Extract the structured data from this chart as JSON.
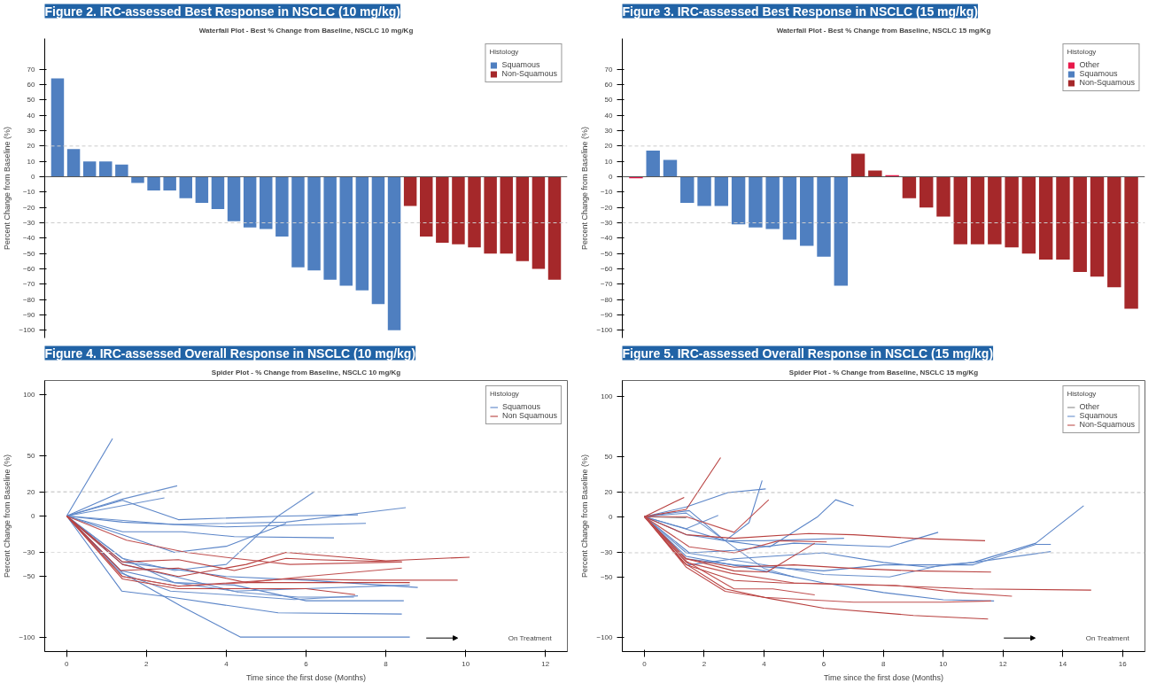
{
  "chart_data": [
    {
      "type": "bar",
      "title": "Figure 2. IRC-assessed Best Response in NSCLC (10 mg/kg)",
      "subtitle": "Waterfall Plot - Best % Change from Baseline, NSCLC 10 mg/Kg",
      "ylabel": "Percent Change from Baseline (%)",
      "legend_title": "Histology",
      "legend": "top right",
      "grid": false,
      "tick_labels": "y",
      "categories": [
        null,
        null,
        null,
        null,
        null,
        null,
        null,
        null,
        null,
        null,
        null,
        null,
        null,
        null,
        null,
        null,
        null,
        null,
        null,
        null,
        null,
        null,
        null,
        null,
        null,
        null,
        null,
        null,
        null,
        null,
        null,
        null
      ],
      "series": [
        {
          "name": "Squamous",
          "color": "#4f7fc0",
          "values": [
            64,
            18,
            10,
            10,
            8,
            -4,
            -9,
            -9,
            -14,
            -17,
            -21,
            -29,
            -33,
            -34,
            -39,
            -59,
            -61,
            -67,
            -71,
            -74,
            -83,
            -100,
            null,
            null,
            null,
            null,
            null,
            null,
            null,
            null,
            null,
            null
          ]
        },
        {
          "name": "Non-Squamous",
          "color": "#a5282a",
          "values": [
            null,
            null,
            null,
            null,
            null,
            null,
            null,
            null,
            null,
            null,
            null,
            null,
            null,
            null,
            null,
            null,
            null,
            null,
            null,
            null,
            null,
            null,
            -19,
            -39,
            -43,
            -44,
            -46,
            -50,
            -50,
            -55,
            -60,
            -67
          ]
        }
      ],
      "ylim": [
        -105,
        90
      ],
      "yticks": [
        -100,
        -90,
        -80,
        -70,
        -60,
        -50,
        -40,
        -30,
        -20,
        -10,
        0,
        10,
        20,
        30,
        40,
        50,
        60,
        70
      ],
      "ref_lines": [
        {
          "axis": "y",
          "value": 20,
          "color": "#cccccc",
          "line_style": "dashed"
        },
        {
          "axis": "y",
          "value": -30,
          "color": "#cccccc",
          "line_style": "dashed"
        }
      ]
    },
    {
      "type": "bar",
      "title": "Figure 3. IRC-assessed Best Response in NSCLC (15 mg/kg)",
      "subtitle": "Waterfall Plot - Best % Change from Baseline, NSCLC 15 mg/Kg",
      "ylabel": "Percent Change from Baseline (%)",
      "legend_title": "Histology",
      "legend": "top right",
      "grid": false,
      "tick_labels": "y",
      "categories": [
        null,
        null,
        null,
        null,
        null,
        null,
        null,
        null,
        null,
        null,
        null,
        null,
        null,
        null,
        null,
        null,
        null,
        null,
        null,
        null,
        null,
        null,
        null,
        null,
        null,
        null,
        null,
        null,
        null,
        null
      ],
      "series": [
        {
          "name": "Other",
          "color": "#e8194a",
          "values": [
            -1,
            null,
            null,
            null,
            null,
            null,
            null,
            null,
            null,
            null,
            null,
            null,
            null,
            null,
            null,
            1,
            null,
            null,
            null,
            null,
            null,
            null,
            null,
            null,
            null,
            null,
            null,
            null,
            null,
            null
          ]
        },
        {
          "name": "Squamous",
          "color": "#4f7fc0",
          "values": [
            null,
            17,
            11,
            -17,
            -19,
            -19,
            -31,
            -33,
            -34,
            -41,
            -45,
            -52,
            -71,
            null,
            null,
            null,
            null,
            null,
            null,
            null,
            null,
            null,
            null,
            null,
            null,
            null,
            null,
            null,
            null,
            null
          ]
        },
        {
          "name": "Non-Squamous",
          "color": "#a5282a",
          "values": [
            null,
            null,
            null,
            null,
            null,
            null,
            null,
            null,
            null,
            null,
            null,
            null,
            null,
            15,
            4,
            null,
            -14,
            -20,
            -26,
            -44,
            -44,
            -44,
            -46,
            -50,
            -54,
            -54,
            -62,
            -65,
            -72,
            -86
          ]
        }
      ],
      "ylim": [
        -105,
        90
      ],
      "yticks": [
        -100,
        -90,
        -80,
        -70,
        -60,
        -50,
        -40,
        -30,
        -20,
        -10,
        0,
        10,
        20,
        30,
        40,
        50,
        60,
        70
      ],
      "ref_lines": [
        {
          "axis": "y",
          "value": 20,
          "color": "#cccccc",
          "line_style": "dashed"
        },
        {
          "axis": "y",
          "value": -30,
          "color": "#cccccc",
          "line_style": "dashed"
        }
      ]
    },
    {
      "type": "line",
      "title": "Figure 4. IRC-assessed Overall Response in NSCLC (10 mg/kg)",
      "subtitle": "Spider Plot - % Change from Baseline, NSCLC 10 mg/Kg",
      "xlabel": "Time since the first dose (Months)",
      "ylabel": "Percent Change from Baseline (%)",
      "legend_title": "Histology",
      "legend": "top right",
      "grid": false,
      "xlim": [
        -0.55,
        12.55
      ],
      "xticks": [
        0,
        2,
        4,
        6,
        8,
        10,
        12
      ],
      "ylim": [
        -112,
        112
      ],
      "yticks": [
        -100,
        -50,
        -30,
        0,
        20,
        50,
        100
      ],
      "annotations": [
        "On Treatment"
      ],
      "ref_lines": [
        {
          "axis": "y",
          "value": 20,
          "color": "#bbbbbb",
          "line_style": "dashed"
        },
        {
          "axis": "y",
          "value": -30,
          "color": "#dddddd",
          "line_style": "dashed"
        }
      ],
      "series": [
        {
          "name": "Squamous",
          "color": "#5b85c8",
          "x": [
            0,
            1.15
          ],
          "values": [
            0,
            64
          ]
        },
        {
          "color": "#5b85c8",
          "x": [
            0,
            1.38
          ],
          "values": [
            0,
            20
          ]
        },
        {
          "color": "#6a90cc",
          "x": [
            0,
            1.4,
            2.77
          ],
          "values": [
            0,
            14,
            25
          ]
        },
        {
          "color": "#6a90cc",
          "x": [
            0,
            2.45
          ],
          "values": [
            0,
            15
          ]
        },
        {
          "color": "#5b85c8",
          "x": [
            0,
            1.4,
            2.8,
            5.5,
            7.3
          ],
          "values": [
            0,
            13,
            -3,
            0,
            1
          ]
        },
        {
          "color": "#6a90cc",
          "x": [
            0,
            2.7,
            5.5,
            8.5
          ],
          "values": [
            0,
            -7,
            -5,
            7
          ]
        },
        {
          "color": "#5b85c8",
          "x": [
            0,
            1.4,
            4,
            7.5
          ],
          "values": [
            0,
            -5,
            -9,
            -6
          ]
        },
        {
          "color": "#5b85c8",
          "x": [
            0,
            1.4,
            2.9,
            4.2,
            6.7
          ],
          "values": [
            0,
            -13,
            -13,
            -17,
            -18
          ]
        },
        {
          "color": "#6a90cc",
          "x": [
            0,
            1.4,
            2.7,
            4,
            5.3,
            6.2
          ],
          "values": [
            0,
            -35,
            -45,
            -40,
            0,
            20
          ]
        },
        {
          "color": "#5b85c8",
          "x": [
            0,
            2.7,
            4,
            5.5
          ],
          "values": [
            0,
            -30,
            -25,
            -6
          ]
        },
        {
          "color": "#6a90cc",
          "x": [
            0,
            1.4,
            2.7,
            4.3,
            5.8,
            7.2
          ],
          "values": [
            0,
            -40,
            -50,
            -63,
            -67,
            -67
          ]
        },
        {
          "color": "#5b85c8",
          "x": [
            0,
            1.35,
            2.7,
            4.2,
            6,
            8.45
          ],
          "values": [
            0,
            -45,
            -55,
            -57,
            -70,
            -70
          ]
        },
        {
          "color": "#5b85c8",
          "x": [
            0,
            1.38,
            2.6,
            5.3,
            8.4
          ],
          "values": [
            0,
            -62,
            -67,
            -80,
            -81
          ]
        },
        {
          "color": "#6a90cc",
          "x": [
            0,
            1.35,
            2.6,
            4,
            5.7,
            7.3
          ],
          "values": [
            0,
            -47,
            -62,
            -65,
            -69,
            -66
          ]
        },
        {
          "color": "#5b85c8",
          "x": [
            0,
            1.4,
            2.9,
            4.35,
            8.6
          ],
          "values": [
            0,
            -47,
            -75,
            -100,
            -100
          ]
        },
        {
          "color": "#6a90cc",
          "x": [
            0,
            1.4,
            2.7,
            4.2,
            8.6
          ],
          "values": [
            0,
            -35,
            -55,
            -62,
            -57
          ]
        },
        {
          "color": "#5b85c8",
          "x": [
            0,
            1.4,
            4,
            6,
            8.8
          ],
          "values": [
            0,
            -38,
            -50,
            -53,
            -59
          ]
        },
        {
          "name": "Non Squamous",
          "color": "#b8403f",
          "x": [
            0,
            1.4,
            2.8,
            4.2,
            5.5,
            6.2,
            8.4
          ],
          "values": [
            0,
            -38,
            -36,
            -45,
            -35,
            -36,
            -38
          ]
        },
        {
          "color": "#b8403f",
          "x": [
            0,
            1.4,
            2.8,
            4.5,
            5.5,
            8,
            10.1
          ],
          "values": [
            0,
            -40,
            -50,
            -40,
            -30,
            -37,
            -34
          ]
        },
        {
          "color": "#c05050",
          "x": [
            0,
            1.4,
            2.8,
            4.5,
            6,
            8.4
          ],
          "values": [
            0,
            -50,
            -58,
            -55,
            -50,
            -43
          ]
        },
        {
          "color": "#b8403f",
          "x": [
            0,
            1.35,
            2.8,
            4.5,
            8.6
          ],
          "values": [
            0,
            -45,
            -43,
            -55,
            -55
          ]
        },
        {
          "color": "#c05050",
          "x": [
            0,
            1.4,
            2.8,
            5.5,
            7.5,
            9.8
          ],
          "values": [
            0,
            -50,
            -58,
            -52,
            -53,
            -53
          ]
        },
        {
          "color": "#b8403f",
          "x": [
            0,
            1.4,
            2.8,
            4.5,
            6,
            7.23
          ],
          "values": [
            0,
            -52,
            -60,
            -60,
            -60,
            -65
          ]
        },
        {
          "color": "#c05050",
          "x": [
            0,
            1.5,
            3,
            4.2,
            5.6,
            8.4
          ],
          "values": [
            0,
            -20,
            -30,
            -35,
            -40,
            -38
          ]
        }
      ]
    },
    {
      "type": "line",
      "title": "Figure 5. IRC-assessed Overall Response in NSCLC (15 mg/kg)",
      "subtitle": "Spider Plot - % Change from Baseline, NSCLC 15 mg/Kg",
      "xlabel": "Time since the first dose (Months)",
      "ylabel": "Percent Change from Baseline (%)",
      "legend_title": "Histology",
      "legend": "top right",
      "grid": false,
      "xlim": [
        -0.74,
        16.75
      ],
      "xticks": [
        0,
        2,
        4,
        6,
        8,
        10,
        12,
        14,
        16
      ],
      "ylim": [
        -112,
        113
      ],
      "yticks": [
        -100,
        -50,
        -30,
        0,
        20,
        50,
        100
      ],
      "annotations": [
        "On Treatment"
      ],
      "ref_lines": [
        {
          "axis": "y",
          "value": 20,
          "color": "#bbbbbb",
          "line_style": "dashed"
        },
        {
          "axis": "y",
          "value": -30,
          "color": "#cccccc",
          "line_style": "dashed"
        }
      ],
      "series": [
        {
          "name": "Other",
          "color": "#808080",
          "x": [
            0,
            1.4
          ],
          "values": [
            0,
            -1
          ]
        },
        {
          "name": "Squamous",
          "color": "#5b85c8",
          "x": [
            0,
            1.4,
            2.8,
            4.06
          ],
          "values": [
            0,
            8,
            20,
            23
          ]
        },
        {
          "color": "#5b85c8",
          "x": [
            0,
            1.5,
            2.7,
            3.5,
            3.94
          ],
          "values": [
            0,
            5,
            -20,
            -5,
            30
          ]
        },
        {
          "color": "#6a90cc",
          "x": [
            0,
            1.4,
            2.47
          ],
          "values": [
            0,
            -10,
            1
          ]
        },
        {
          "color": "#5b85c8",
          "x": [
            0,
            2.7,
            4.2,
            5.8,
            6.4,
            7
          ],
          "values": [
            0,
            -20,
            -25,
            0,
            14,
            9
          ]
        },
        {
          "color": "#6a90cc",
          "x": [
            0,
            1.4,
            2.7,
            4,
            6.68
          ],
          "values": [
            0,
            -15,
            -20,
            -20,
            -18
          ]
        },
        {
          "color": "#5b85c8",
          "x": [
            0,
            1.5,
            3,
            5,
            7,
            8.2,
            9.83
          ],
          "values": [
            0,
            -30,
            -28,
            -22,
            -24,
            -25,
            -13
          ]
        },
        {
          "color": "#5b85c8",
          "x": [
            0,
            1.5,
            3,
            6,
            8,
            9.5,
            11,
            13.1,
            14.7
          ],
          "values": [
            0,
            -40,
            -35,
            -30,
            -38,
            -42,
            -38,
            -22,
            9
          ]
        },
        {
          "color": "#6a90cc",
          "x": [
            0,
            1.4,
            4,
            5
          ],
          "values": [
            0,
            3,
            -43,
            -50
          ]
        },
        {
          "color": "#5b85c8",
          "x": [
            0,
            1.4,
            3,
            6,
            8,
            11,
            13.1,
            13.6
          ],
          "values": [
            0,
            -35,
            -40,
            -45,
            -40,
            -40,
            -23,
            -23
          ]
        },
        {
          "color": "#6a90cc",
          "x": [
            0,
            1.4,
            4,
            6,
            8.2,
            10,
            11,
            13.6
          ],
          "values": [
            0,
            -30,
            -40,
            -48,
            -50,
            -40,
            -38,
            -29
          ]
        },
        {
          "color": "#5b85c8",
          "x": [
            0,
            1.4,
            4,
            6,
            8,
            10,
            11.7
          ],
          "values": [
            0,
            -33,
            -45,
            -55,
            -63,
            -69,
            -70
          ]
        },
        {
          "name": "Non-Squamous",
          "color": "#b8403f",
          "x": [
            0,
            1.4,
            2.55
          ],
          "values": [
            0,
            6,
            49
          ]
        },
        {
          "color": "#b8403f",
          "x": [
            0,
            1.33
          ],
          "values": [
            0,
            16
          ]
        },
        {
          "color": "#c05050",
          "x": [
            0,
            1.4,
            3,
            4.16
          ],
          "values": [
            0,
            0,
            -13,
            14
          ]
        },
        {
          "color": "#b8403f",
          "x": [
            0,
            1.4,
            3,
            5.5,
            7,
            9,
            11.4
          ],
          "values": [
            0,
            -15,
            -18,
            -14,
            -15,
            -18,
            -20
          ]
        },
        {
          "color": "#c05050",
          "x": [
            0,
            1.5,
            3,
            4.5,
            6.1
          ],
          "values": [
            0,
            -25,
            -30,
            -20,
            -21
          ]
        },
        {
          "color": "#b8403f",
          "x": [
            0,
            1.4,
            3,
            5,
            7,
            9,
            11.6
          ],
          "values": [
            0,
            -35,
            -42,
            -40,
            -43,
            -45,
            -46
          ]
        },
        {
          "color": "#b8403f",
          "x": [
            0,
            1.4,
            3,
            4.6,
            8,
            11,
            14.95
          ],
          "values": [
            0,
            -40,
            -53,
            -55,
            -57,
            -60,
            -61
          ]
        },
        {
          "color": "#c05050",
          "x": [
            0,
            1.4,
            2.7,
            4,
            7,
            10,
            11.6
          ],
          "values": [
            0,
            -42,
            -62,
            -67,
            -71,
            -71,
            -70
          ]
        },
        {
          "color": "#b8403f",
          "x": [
            0,
            1.3,
            2.7,
            4.2,
            6,
            9,
            11.5
          ],
          "values": [
            0,
            -38,
            -60,
            -68,
            -76,
            -82,
            -85
          ]
        },
        {
          "color": "#c05050",
          "x": [
            0,
            1.4,
            3,
            4.3,
            5.7
          ],
          "values": [
            0,
            -37,
            -60,
            -60,
            -65
          ]
        },
        {
          "color": "#b8403f",
          "x": [
            0,
            1.4,
            3,
            4.1,
            5.7
          ],
          "values": [
            0,
            -35,
            -45,
            -46,
            -22
          ]
        },
        {
          "color": "#c05050",
          "x": [
            0,
            1.4,
            2.9,
            5,
            8.4,
            10.5,
            12.3
          ],
          "values": [
            0,
            -38,
            -47,
            -55,
            -57,
            -63,
            -66
          ]
        }
      ]
    }
  ]
}
